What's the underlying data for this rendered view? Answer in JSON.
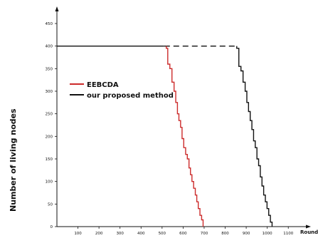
{
  "chart_data": {
    "type": "line",
    "title": "",
    "xlabel": "Round",
    "ylabel": "Number of living nodes",
    "xlim": [
      0,
      1150
    ],
    "ylim": [
      0,
      480
    ],
    "x_ticks": [
      100,
      200,
      300,
      400,
      500,
      600,
      700,
      800,
      900,
      1000,
      1100
    ],
    "y_ticks": [
      0,
      50,
      100,
      150,
      200,
      250,
      300,
      350,
      400,
      450
    ],
    "grid": false,
    "legend_placement": "upper-left",
    "series": [
      {
        "name": "EEBCDA",
        "color": "#cc2b2b",
        "line_style": "solid",
        "points": [
          [
            0,
            400
          ],
          [
            520,
            400
          ],
          [
            520,
            395
          ],
          [
            527,
            395
          ],
          [
            527,
            360
          ],
          [
            537,
            360
          ],
          [
            537,
            350
          ],
          [
            547,
            350
          ],
          [
            547,
            320
          ],
          [
            557,
            320
          ],
          [
            557,
            300
          ],
          [
            565,
            300
          ],
          [
            565,
            275
          ],
          [
            573,
            275
          ],
          [
            573,
            250
          ],
          [
            580,
            250
          ],
          [
            580,
            235
          ],
          [
            588,
            235
          ],
          [
            588,
            220
          ],
          [
            595,
            220
          ],
          [
            595,
            195
          ],
          [
            603,
            195
          ],
          [
            603,
            175
          ],
          [
            612,
            175
          ],
          [
            612,
            160
          ],
          [
            620,
            160
          ],
          [
            620,
            150
          ],
          [
            628,
            150
          ],
          [
            628,
            130
          ],
          [
            635,
            130
          ],
          [
            635,
            115
          ],
          [
            642,
            115
          ],
          [
            642,
            100
          ],
          [
            650,
            100
          ],
          [
            650,
            85
          ],
          [
            658,
            85
          ],
          [
            658,
            70
          ],
          [
            665,
            70
          ],
          [
            665,
            55
          ],
          [
            672,
            55
          ],
          [
            672,
            40
          ],
          [
            680,
            40
          ],
          [
            680,
            25
          ],
          [
            688,
            25
          ],
          [
            688,
            15
          ],
          [
            695,
            15
          ],
          [
            695,
            0
          ]
        ]
      },
      {
        "name": "our proposed method",
        "color": "#111111",
        "line_style": "solid",
        "points": [
          [
            0,
            400
          ],
          [
            510,
            400
          ],
          [
            510,
            400
          ],
          [
            855,
            400
          ],
          [
            855,
            395
          ],
          [
            865,
            395
          ],
          [
            865,
            355
          ],
          [
            875,
            355
          ],
          [
            875,
            345
          ],
          [
            885,
            345
          ],
          [
            885,
            320
          ],
          [
            895,
            320
          ],
          [
            895,
            300
          ],
          [
            903,
            300
          ],
          [
            903,
            275
          ],
          [
            911,
            275
          ],
          [
            911,
            255
          ],
          [
            919,
            255
          ],
          [
            919,
            235
          ],
          [
            927,
            235
          ],
          [
            927,
            215
          ],
          [
            935,
            215
          ],
          [
            935,
            190
          ],
          [
            943,
            190
          ],
          [
            943,
            175
          ],
          [
            951,
            175
          ],
          [
            951,
            150
          ],
          [
            959,
            150
          ],
          [
            959,
            135
          ],
          [
            967,
            135
          ],
          [
            967,
            110
          ],
          [
            975,
            110
          ],
          [
            975,
            90
          ],
          [
            983,
            90
          ],
          [
            983,
            70
          ],
          [
            991,
            70
          ],
          [
            991,
            55
          ],
          [
            999,
            55
          ],
          [
            999,
            40
          ],
          [
            1007,
            40
          ],
          [
            1007,
            25
          ],
          [
            1015,
            25
          ],
          [
            1015,
            10
          ],
          [
            1023,
            10
          ],
          [
            1023,
            0
          ]
        ]
      }
    ]
  }
}
